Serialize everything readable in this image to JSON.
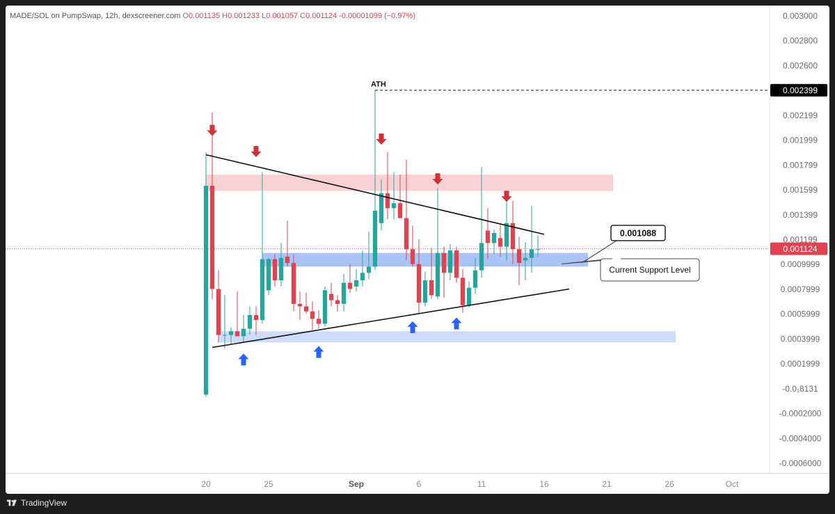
{
  "header": {
    "symbol": "MADE/SOL on PumpSwap, 12h, dexscreener.com",
    "o_label": "O",
    "o_value": "0.001135",
    "h_label": "H",
    "h_value": "0.001233",
    "l_label": "L",
    "l_value": "0.001057",
    "c_label": "C",
    "c_value": "0.001124",
    "change": "-0.00001099 (−0.97%)"
  },
  "footer": {
    "brand": "TradingView"
  },
  "colors": {
    "up": "#26a69a",
    "down": "#e0424f",
    "resistance": "#f9d0d3",
    "support": "#a9c4f5",
    "support_light": "#cfdcf9",
    "arrow_up": "#2962ff",
    "arrow_down": "#d32f3a"
  },
  "chart_data": {
    "type": "candlestick",
    "y_range": [
      -0.00068,
      0.00308
    ],
    "y_ticks": [
      {
        "v": 0.003,
        "label": "0.003000"
      },
      {
        "v": 0.0028,
        "label": "0.002800"
      },
      {
        "v": 0.0026,
        "label": "0.002600"
      },
      {
        "v": 0.002399,
        "label": "0.002399",
        "badge": true
      },
      {
        "v": 0.0022,
        "label": "0.002199"
      },
      {
        "v": 0.002,
        "label": "0.001999"
      },
      {
        "v": 0.0018,
        "label": "0.001799"
      },
      {
        "v": 0.0016,
        "label": "0.001599"
      },
      {
        "v": 0.0014,
        "label": "0.001399"
      },
      {
        "v": 0.0012,
        "label": "0.001199"
      },
      {
        "v": 0.001124,
        "label": "0.001124",
        "badge": true,
        "current": true
      },
      {
        "v": 0.001,
        "label": "0.0009999"
      },
      {
        "v": 0.0008,
        "label": "0.0007999"
      },
      {
        "v": 0.0006,
        "label": "0.0005999"
      },
      {
        "v": 0.0004,
        "label": "0.0003999"
      },
      {
        "v": 0.0002,
        "label": "0.0001999"
      },
      {
        "v": 0.0,
        "label": "-0.0₁8131"
      },
      {
        "v": -0.0002,
        "label": "-0.0002000"
      },
      {
        "v": -0.0004,
        "label": "-0.0004000"
      },
      {
        "v": -0.0006,
        "label": "-0.0006000"
      }
    ],
    "x_ticks": [
      {
        "d": "2025-08-20",
        "label": "20"
      },
      {
        "d": "2025-08-25",
        "label": "25"
      },
      {
        "d": "2025-09-01",
        "label": "Sep",
        "bold": true
      },
      {
        "d": "2025-09-06",
        "label": "6"
      },
      {
        "d": "2025-09-11",
        "label": "11"
      },
      {
        "d": "2025-09-16",
        "label": "16"
      },
      {
        "d": "2025-09-21",
        "label": "21"
      },
      {
        "d": "2025-09-26",
        "label": "26"
      },
      {
        "d": "2025-10-01",
        "label": "Oct"
      }
    ],
    "x_range": [
      "2025-08-04T00:00",
      "2025-10-04T00:00"
    ],
    "candles": [
      {
        "t": "2025-08-20T00:00",
        "o": -5e-05,
        "h": 0.0019,
        "l": -7e-05,
        "c": 0.00163
      },
      {
        "t": "2025-08-20T12:00",
        "o": 0.00163,
        "h": 0.00222,
        "l": 0.00072,
        "c": 0.0008
      },
      {
        "t": "2025-08-21T00:00",
        "o": 0.0008,
        "h": 0.00095,
        "l": 0.00037,
        "c": 0.00043
      },
      {
        "t": "2025-08-21T12:00",
        "o": 0.00043,
        "h": 0.00075,
        "l": 0.00032,
        "c": 0.00043
      },
      {
        "t": "2025-08-22T00:00",
        "o": 0.00043,
        "h": 0.00049,
        "l": 0.00035,
        "c": 0.00046
      },
      {
        "t": "2025-08-22T12:00",
        "o": 0.00046,
        "h": 0.00078,
        "l": 0.00042,
        "c": 0.00042
      },
      {
        "t": "2025-08-23T00:00",
        "o": 0.00042,
        "h": 0.00059,
        "l": 0.00037,
        "c": 0.00048
      },
      {
        "t": "2025-08-23T12:00",
        "o": 0.00048,
        "h": 0.00066,
        "l": 0.00043,
        "c": 0.00059
      },
      {
        "t": "2025-08-24T00:00",
        "o": 0.00059,
        "h": 0.00066,
        "l": 0.00043,
        "c": 0.00055
      },
      {
        "t": "2025-08-24T12:00",
        "o": 0.00055,
        "h": 0.00174,
        "l": 0.00052,
        "c": 0.00104
      },
      {
        "t": "2025-08-25T00:00",
        "o": 0.00079,
        "h": 0.00105,
        "l": 0.00075,
        "c": 0.00104
      },
      {
        "t": "2025-08-25T12:00",
        "o": 0.00104,
        "h": 0.00108,
        "l": 0.00082,
        "c": 0.00087
      },
      {
        "t": "2025-08-26T00:00",
        "o": 0.00087,
        "h": 0.00117,
        "l": 0.00082,
        "c": 0.00105
      },
      {
        "t": "2025-08-26T12:00",
        "o": 0.00106,
        "h": 0.00135,
        "l": 0.00098,
        "c": 0.00101
      },
      {
        "t": "2025-08-27T00:00",
        "o": 0.00101,
        "h": 0.00108,
        "l": 0.00062,
        "c": 0.00068
      },
      {
        "t": "2025-08-27T12:00",
        "o": 0.00068,
        "h": 0.00078,
        "l": 0.00055,
        "c": 0.00066
      },
      {
        "t": "2025-08-28T00:00",
        "o": 0.00066,
        "h": 0.00077,
        "l": 0.0006,
        "c": 0.00062
      },
      {
        "t": "2025-08-28T12:00",
        "o": 0.00062,
        "h": 0.0007,
        "l": 0.00047,
        "c": 0.00056
      },
      {
        "t": "2025-08-29T00:00",
        "o": 0.00056,
        "h": 0.00063,
        "l": 0.00048,
        "c": 0.00052
      },
      {
        "t": "2025-08-29T12:00",
        "o": 0.00052,
        "h": 0.00082,
        "l": 0.0005,
        "c": 0.00079
      },
      {
        "t": "2025-08-30T00:00",
        "o": 0.00076,
        "h": 0.00085,
        "l": 0.00066,
        "c": 0.00071
      },
      {
        "t": "2025-08-30T12:00",
        "o": 0.00071,
        "h": 0.00075,
        "l": 0.00062,
        "c": 0.00068
      },
      {
        "t": "2025-08-31T00:00",
        "o": 0.00068,
        "h": 0.00092,
        "l": 0.00062,
        "c": 0.00085
      },
      {
        "t": "2025-08-31T12:00",
        "o": 0.00085,
        "h": 0.001,
        "l": 0.00077,
        "c": 0.0008
      },
      {
        "t": "2025-09-01T00:00",
        "o": 0.00082,
        "h": 0.00096,
        "l": 0.00078,
        "c": 0.00087
      },
      {
        "t": "2025-09-01T12:00",
        "o": 0.00087,
        "h": 0.00111,
        "l": 0.00082,
        "c": 0.00093
      },
      {
        "t": "2025-09-02T00:00",
        "o": 0.00093,
        "h": 0.00126,
        "l": 0.00088,
        "c": 0.00098
      },
      {
        "t": "2025-09-02T12:00",
        "o": 0.00098,
        "h": 0.0024,
        "l": 0.00095,
        "c": 0.00143
      },
      {
        "t": "2025-09-03T00:00",
        "o": 0.00133,
        "h": 0.00168,
        "l": 0.00127,
        "c": 0.00157
      },
      {
        "t": "2025-09-03T12:00",
        "o": 0.00157,
        "h": 0.0019,
        "l": 0.00136,
        "c": 0.00145
      },
      {
        "t": "2025-09-04T00:00",
        "o": 0.00145,
        "h": 0.00174,
        "l": 0.00136,
        "c": 0.00149
      },
      {
        "t": "2025-09-04T12:00",
        "o": 0.00149,
        "h": 0.00172,
        "l": 0.00138,
        "c": 0.00137
      },
      {
        "t": "2025-09-05T00:00",
        "o": 0.00137,
        "h": 0.00184,
        "l": 0.00103,
        "c": 0.00112
      },
      {
        "t": "2025-09-05T12:00",
        "o": 0.00112,
        "h": 0.00131,
        "l": 0.00098,
        "c": 0.001
      },
      {
        "t": "2025-09-06T00:00",
        "o": 0.001,
        "h": 0.0012,
        "l": 0.0006,
        "c": 0.00069
      },
      {
        "t": "2025-09-06T12:00",
        "o": 0.00069,
        "h": 0.00094,
        "l": 0.00066,
        "c": 0.00087
      },
      {
        "t": "2025-09-07T00:00",
        "o": 0.00087,
        "h": 0.00113,
        "l": 0.00072,
        "c": 0.00075
      },
      {
        "t": "2025-09-07T12:00",
        "o": 0.00074,
        "h": 0.00161,
        "l": 0.00072,
        "c": 0.00109
      },
      {
        "t": "2025-09-08T00:00",
        "o": 0.00109,
        "h": 0.00114,
        "l": 0.00073,
        "c": 0.00093
      },
      {
        "t": "2025-09-08T12:00",
        "o": 0.00093,
        "h": 0.00116,
        "l": 0.00087,
        "c": 0.00111
      },
      {
        "t": "2025-09-09T00:00",
        "o": 0.00111,
        "h": 0.00114,
        "l": 0.00085,
        "c": 0.00089
      },
      {
        "t": "2025-09-09T12:00",
        "o": 0.00089,
        "h": 0.00096,
        "l": 0.00061,
        "c": 0.00067
      },
      {
        "t": "2025-09-10T00:00",
        "o": 0.00067,
        "h": 0.00086,
        "l": 0.00065,
        "c": 0.00081
      },
      {
        "t": "2025-09-10T12:00",
        "o": 0.00081,
        "h": 0.00105,
        "l": 0.00076,
        "c": 0.00095
      },
      {
        "t": "2025-09-11T00:00",
        "o": 0.00095,
        "h": 0.00178,
        "l": 0.00089,
        "c": 0.00117
      },
      {
        "t": "2025-09-11T12:00",
        "o": 0.00127,
        "h": 0.00145,
        "l": 0.00104,
        "c": 0.00117
      },
      {
        "t": "2025-09-12T00:00",
        "o": 0.00117,
        "h": 0.00128,
        "l": 0.00108,
        "c": 0.00125
      },
      {
        "t": "2025-09-12T12:00",
        "o": 0.00121,
        "h": 0.00132,
        "l": 0.00106,
        "c": 0.00114
      },
      {
        "t": "2025-09-13T00:00",
        "o": 0.00114,
        "h": 0.00155,
        "l": 0.00103,
        "c": 0.00133
      },
      {
        "t": "2025-09-13T12:00",
        "o": 0.00133,
        "h": 0.00151,
        "l": 0.001,
        "c": 0.00112
      },
      {
        "t": "2025-09-14T00:00",
        "o": 0.00112,
        "h": 0.00122,
        "l": 0.00083,
        "c": 0.00101
      },
      {
        "t": "2025-09-14T12:00",
        "o": 0.00103,
        "h": 0.00118,
        "l": 0.00087,
        "c": 0.00105
      },
      {
        "t": "2025-09-15T00:00",
        "o": 0.00105,
        "h": 0.00147,
        "l": 0.00093,
        "c": 0.00112
      },
      {
        "t": "2025-09-15T12:00",
        "o": 0.00112,
        "h": 0.00123,
        "l": 0.00106,
        "c": 0.00112
      }
    ],
    "annotations": {
      "ath_label": "ATH",
      "ath_value": 0.002399,
      "resistance_zone": {
        "y_low": 0.00159,
        "y_high": 0.00172,
        "from": "2025-08-20T00:00",
        "to": "2025-09-21T12:00"
      },
      "support_zone": {
        "y_low": 0.00098,
        "y_high": 0.00109,
        "from": "2025-08-24T12:00",
        "to": "2025-09-19T12:00"
      },
      "lower_support_zone": {
        "y_low": 0.00037,
        "y_high": 0.00046,
        "from": "2025-08-21T00:00",
        "to": "2025-09-26T12:00"
      },
      "upper_trendline": [
        [
          "2025-08-20T00:00",
          0.00188
        ],
        [
          "2025-09-16T00:00",
          0.00124
        ]
      ],
      "lower_trendline": [
        [
          "2025-08-20T12:00",
          0.00033
        ],
        [
          "2025-09-18T00:00",
          0.0008
        ]
      ],
      "down_arrows": [
        [
          "2025-08-20T12:00",
          0.00207
        ],
        [
          "2025-08-24T00:00",
          0.0019
        ],
        [
          "2025-09-03T00:00",
          0.002
        ],
        [
          "2025-09-07T12:00",
          0.00168
        ],
        [
          "2025-09-13T00:00",
          0.00154
        ]
      ],
      "up_arrows": [
        [
          "2025-08-23T00:00",
          0.00023
        ],
        [
          "2025-08-29T00:00",
          0.00029
        ],
        [
          "2025-09-05T12:00",
          0.00049
        ],
        [
          "2025-09-09T00:00",
          0.00052
        ]
      ],
      "price_callout": "0.001088",
      "support_callout": "Current Support Level"
    }
  }
}
